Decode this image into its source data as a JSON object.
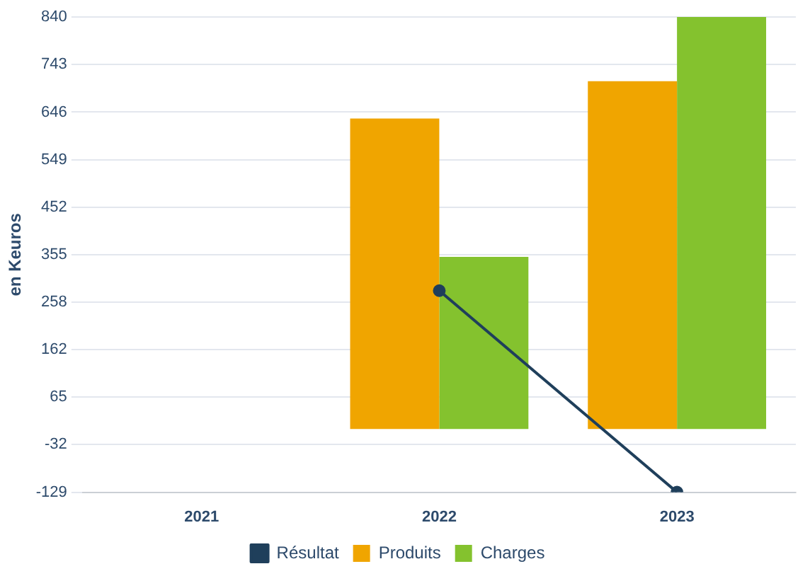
{
  "chart_data": {
    "type": "bar",
    "ylabel": "en Keuros",
    "categories": [
      "2021",
      "2022",
      "2023"
    ],
    "series": [
      {
        "name": "Résultat",
        "type": "line",
        "color": "#1f3f5b",
        "values": [
          null,
          282,
          -129
        ]
      },
      {
        "name": "Produits",
        "color": "#f0a500",
        "values": [
          null,
          633,
          709
        ]
      },
      {
        "name": "Charges",
        "color": "#84c22e",
        "values": [
          null,
          351,
          840
        ]
      }
    ],
    "ylim": [
      -129,
      840
    ],
    "yticks": [
      840,
      743,
      646,
      549,
      452,
      355,
      258,
      162,
      65,
      -32,
      -129
    ],
    "grid": "y",
    "legend": "bottom",
    "marker": "circle"
  }
}
